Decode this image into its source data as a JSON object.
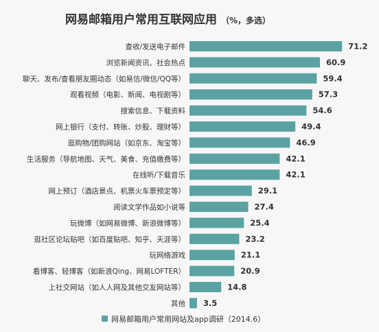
{
  "chart_data": {
    "type": "bar",
    "orientation": "horizontal",
    "title": "网易邮箱用户常用互联网应用",
    "subtitle": "（%，多选）",
    "categories": [
      "查收/发送电子邮件",
      "浏览新闻资讯、社会热点",
      "聊天、发布/查看朋友圈动态（如易信/微信/QQ等）",
      "观看视频（电影、新闻、电视剧等）",
      "搜索信息、下载资料",
      "网上银行（支付、转账、炒股、理财等）",
      "逛购物/团购网站（如京东、淘宝等）",
      "生活服务（导航地图、天气、美食、充值缴费等）",
      "在线听/下载音乐",
      "网上预订（酒店景点、机票火车票预定等）",
      "阅读文学作品如小说等",
      "玩微博（如网易微博、新浪微博等）",
      "逛社区论坛贴吧（如百度贴吧、知乎、天涯等）",
      "玩网络游戏",
      "看博客、轻博客（如新浪Qing、网易LOFTER）",
      "上社交网站（如人人网及其他交友网站等）",
      "其他"
    ],
    "values": [
      71.2,
      60.9,
      59.4,
      57.3,
      54.6,
      49.4,
      46.9,
      42.1,
      42.1,
      29.1,
      27.4,
      25.4,
      23.2,
      21.1,
      20.9,
      14.8,
      3.5
    ],
    "value_labels": [
      "71.2",
      "60.9",
      "59.4",
      "57.3",
      "54.6",
      "49.4",
      "46.9",
      "42.1",
      "42.1",
      "29.1",
      "27.4",
      "25.4",
      "23.2",
      "21.1",
      "20.9",
      "14.8",
      "3.5"
    ],
    "series_name": "网易邮箱用户常用网站及app调研（2014.6）",
    "xlim": [
      0,
      75
    ],
    "bar_color": "#5ba3a3",
    "grid": false,
    "legend_position": "bottom"
  }
}
